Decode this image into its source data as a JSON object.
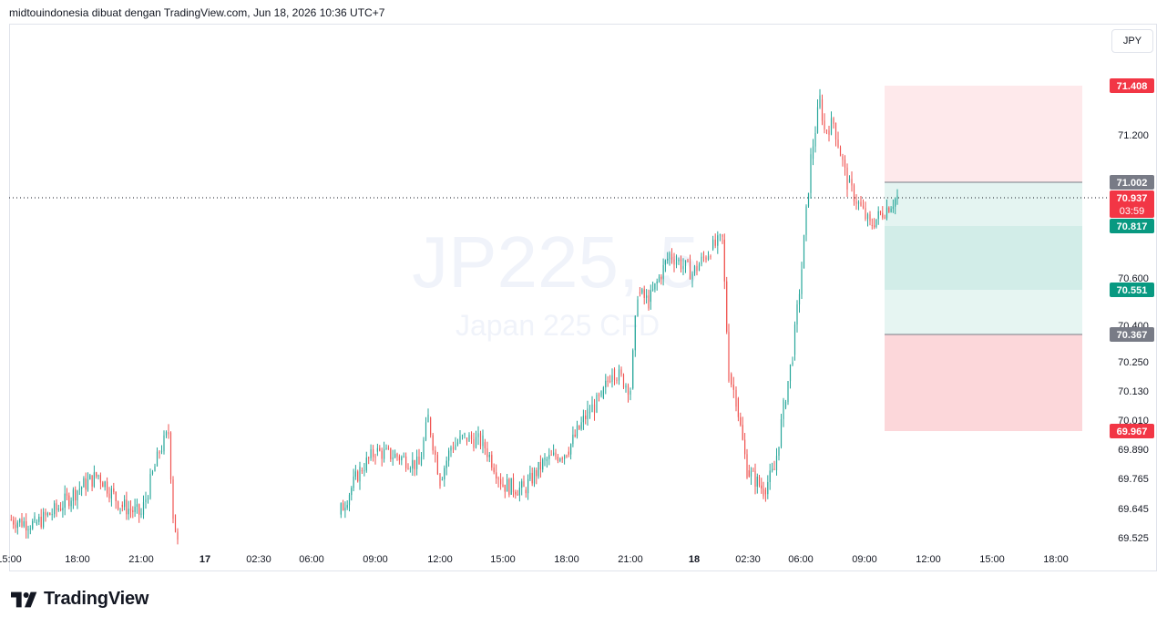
{
  "header": {
    "text": "midtouindonesia dibuat dengan TradingView.com, Jun 18, 2026 10:36 UTC+7"
  },
  "currency_button": "JPY",
  "watermark": {
    "symbol": "JP225, 5",
    "name": "Japan 225 CFD"
  },
  "brand": {
    "name": "TradingView"
  },
  "colors": {
    "up": "#26a69a",
    "down": "#ef5350",
    "risk": "#f23645",
    "reward": "#089981",
    "neutral": "#787b86"
  },
  "chart_data": {
    "type": "candlestick",
    "timeframe": "5",
    "price_axis": {
      "ticks": [
        "71.200",
        "70.600",
        "70.400",
        "70.250",
        "70.130",
        "70.010",
        "69.890",
        "69.765",
        "69.645",
        "69.525"
      ]
    },
    "time_axis": {
      "ticks": [
        {
          "label": "15:00",
          "bold": false
        },
        {
          "label": "18:00",
          "bold": false
        },
        {
          "label": "21:00",
          "bold": false
        },
        {
          "label": "17",
          "bold": true
        },
        {
          "label": "02:30",
          "bold": false
        },
        {
          "label": "06:00",
          "bold": false
        },
        {
          "label": "09:00",
          "bold": false
        },
        {
          "label": "12:00",
          "bold": false
        },
        {
          "label": "15:00",
          "bold": false
        },
        {
          "label": "18:00",
          "bold": false
        },
        {
          "label": "21:00",
          "bold": false
        },
        {
          "label": "18",
          "bold": true
        },
        {
          "label": "02:30",
          "bold": false
        },
        {
          "label": "06:00",
          "bold": false
        },
        {
          "label": "09:00",
          "bold": false
        },
        {
          "label": "12:00",
          "bold": false
        },
        {
          "label": "15:00",
          "bold": false
        },
        {
          "label": "18:00",
          "bold": false
        }
      ]
    },
    "price_labels": [
      {
        "value": "71.408",
        "kind": "risk"
      },
      {
        "value": "71.002",
        "kind": "neutral"
      },
      {
        "value": "70.937",
        "kind": "risk",
        "sub": "03:59"
      },
      {
        "value": "70.817",
        "kind": "reward"
      },
      {
        "value": "70.551",
        "kind": "reward"
      },
      {
        "value": "70.367",
        "kind": "neutral"
      },
      {
        "value": "69.967",
        "kind": "risk"
      }
    ],
    "current_price": 70.937,
    "position": {
      "side": "short",
      "stop": 71.408,
      "entry": 71.002,
      "target_1": 70.817,
      "target_2": 70.551,
      "stop_2": 70.367,
      "stop_2_limit": 69.967
    },
    "anchors": [
      {
        "x": "15:00",
        "y": 69.6
      },
      {
        "x": "16:00",
        "y": 69.58
      },
      {
        "x": "17:00",
        "y": 69.64
      },
      {
        "x": "18:00",
        "y": 69.72
      },
      {
        "x": "19:00",
        "y": 69.78
      },
      {
        "x": "20:00",
        "y": 69.66
      },
      {
        "x": "21:00",
        "y": 69.62
      },
      {
        "x": "22:00",
        "y": 69.88
      },
      {
        "x": "22:30",
        "y": 69.96
      },
      {
        "x": "23:00",
        "y": 69.62
      },
      {
        "x": "23:30",
        "y": 69.5
      },
      {
        "x": "08:00",
        "y": 69.62
      },
      {
        "x": "08:30",
        "y": 69.8
      },
      {
        "x": "09:00",
        "y": 69.88
      },
      {
        "x": "10:00",
        "y": 69.86
      },
      {
        "x": "11:00",
        "y": 69.82
      },
      {
        "x": "11:30",
        "y": 70.02
      },
      {
        "x": "12:00",
        "y": 69.76
      },
      {
        "x": "12:30",
        "y": 69.9
      },
      {
        "x": "13:00",
        "y": 69.94
      },
      {
        "x": "14:00",
        "y": 69.92
      },
      {
        "x": "15:00",
        "y": 69.74
      },
      {
        "x": "16:00",
        "y": 69.72
      },
      {
        "x": "17:00",
        "y": 69.84
      },
      {
        "x": "18:00",
        "y": 69.88
      },
      {
        "x": "19:00",
        "y": 70.04
      },
      {
        "x": "20:00",
        "y": 70.1
      },
      {
        "x": "20:30",
        "y": 70.22
      },
      {
        "x": "21:00",
        "y": 70.14
      },
      {
        "x": "21:30",
        "y": 70.54
      },
      {
        "x": "22:00",
        "y": 70.5
      },
      {
        "x": "23:00",
        "y": 70.7
      },
      {
        "x": "00:00",
        "y": 70.62
      },
      {
        "x": "01:00",
        "y": 70.72
      },
      {
        "x": "01:30",
        "y": 70.76
      },
      {
        "x": "02:00",
        "y": 70.2
      },
      {
        "x": "02:30",
        "y": 70.1
      },
      {
        "x": "03:00",
        "y": 69.8
      },
      {
        "x": "04:00",
        "y": 69.72
      },
      {
        "x": "05:00",
        "y": 69.8
      },
      {
        "x": "05:30",
        "y": 70.06
      },
      {
        "x": "06:30",
        "y": 70.28
      },
      {
        "x": "07:00",
        "y": 70.64
      },
      {
        "x": "07:30",
        "y": 71.1
      },
      {
        "x": "08:00",
        "y": 71.35
      },
      {
        "x": "08:30",
        "y": 71.22
      },
      {
        "x": "09:00",
        "y": 71.25
      },
      {
        "x": "09:30",
        "y": 71.0
      },
      {
        "x": "10:00",
        "y": 70.82
      },
      {
        "x": "10:30",
        "y": 70.94
      }
    ]
  }
}
